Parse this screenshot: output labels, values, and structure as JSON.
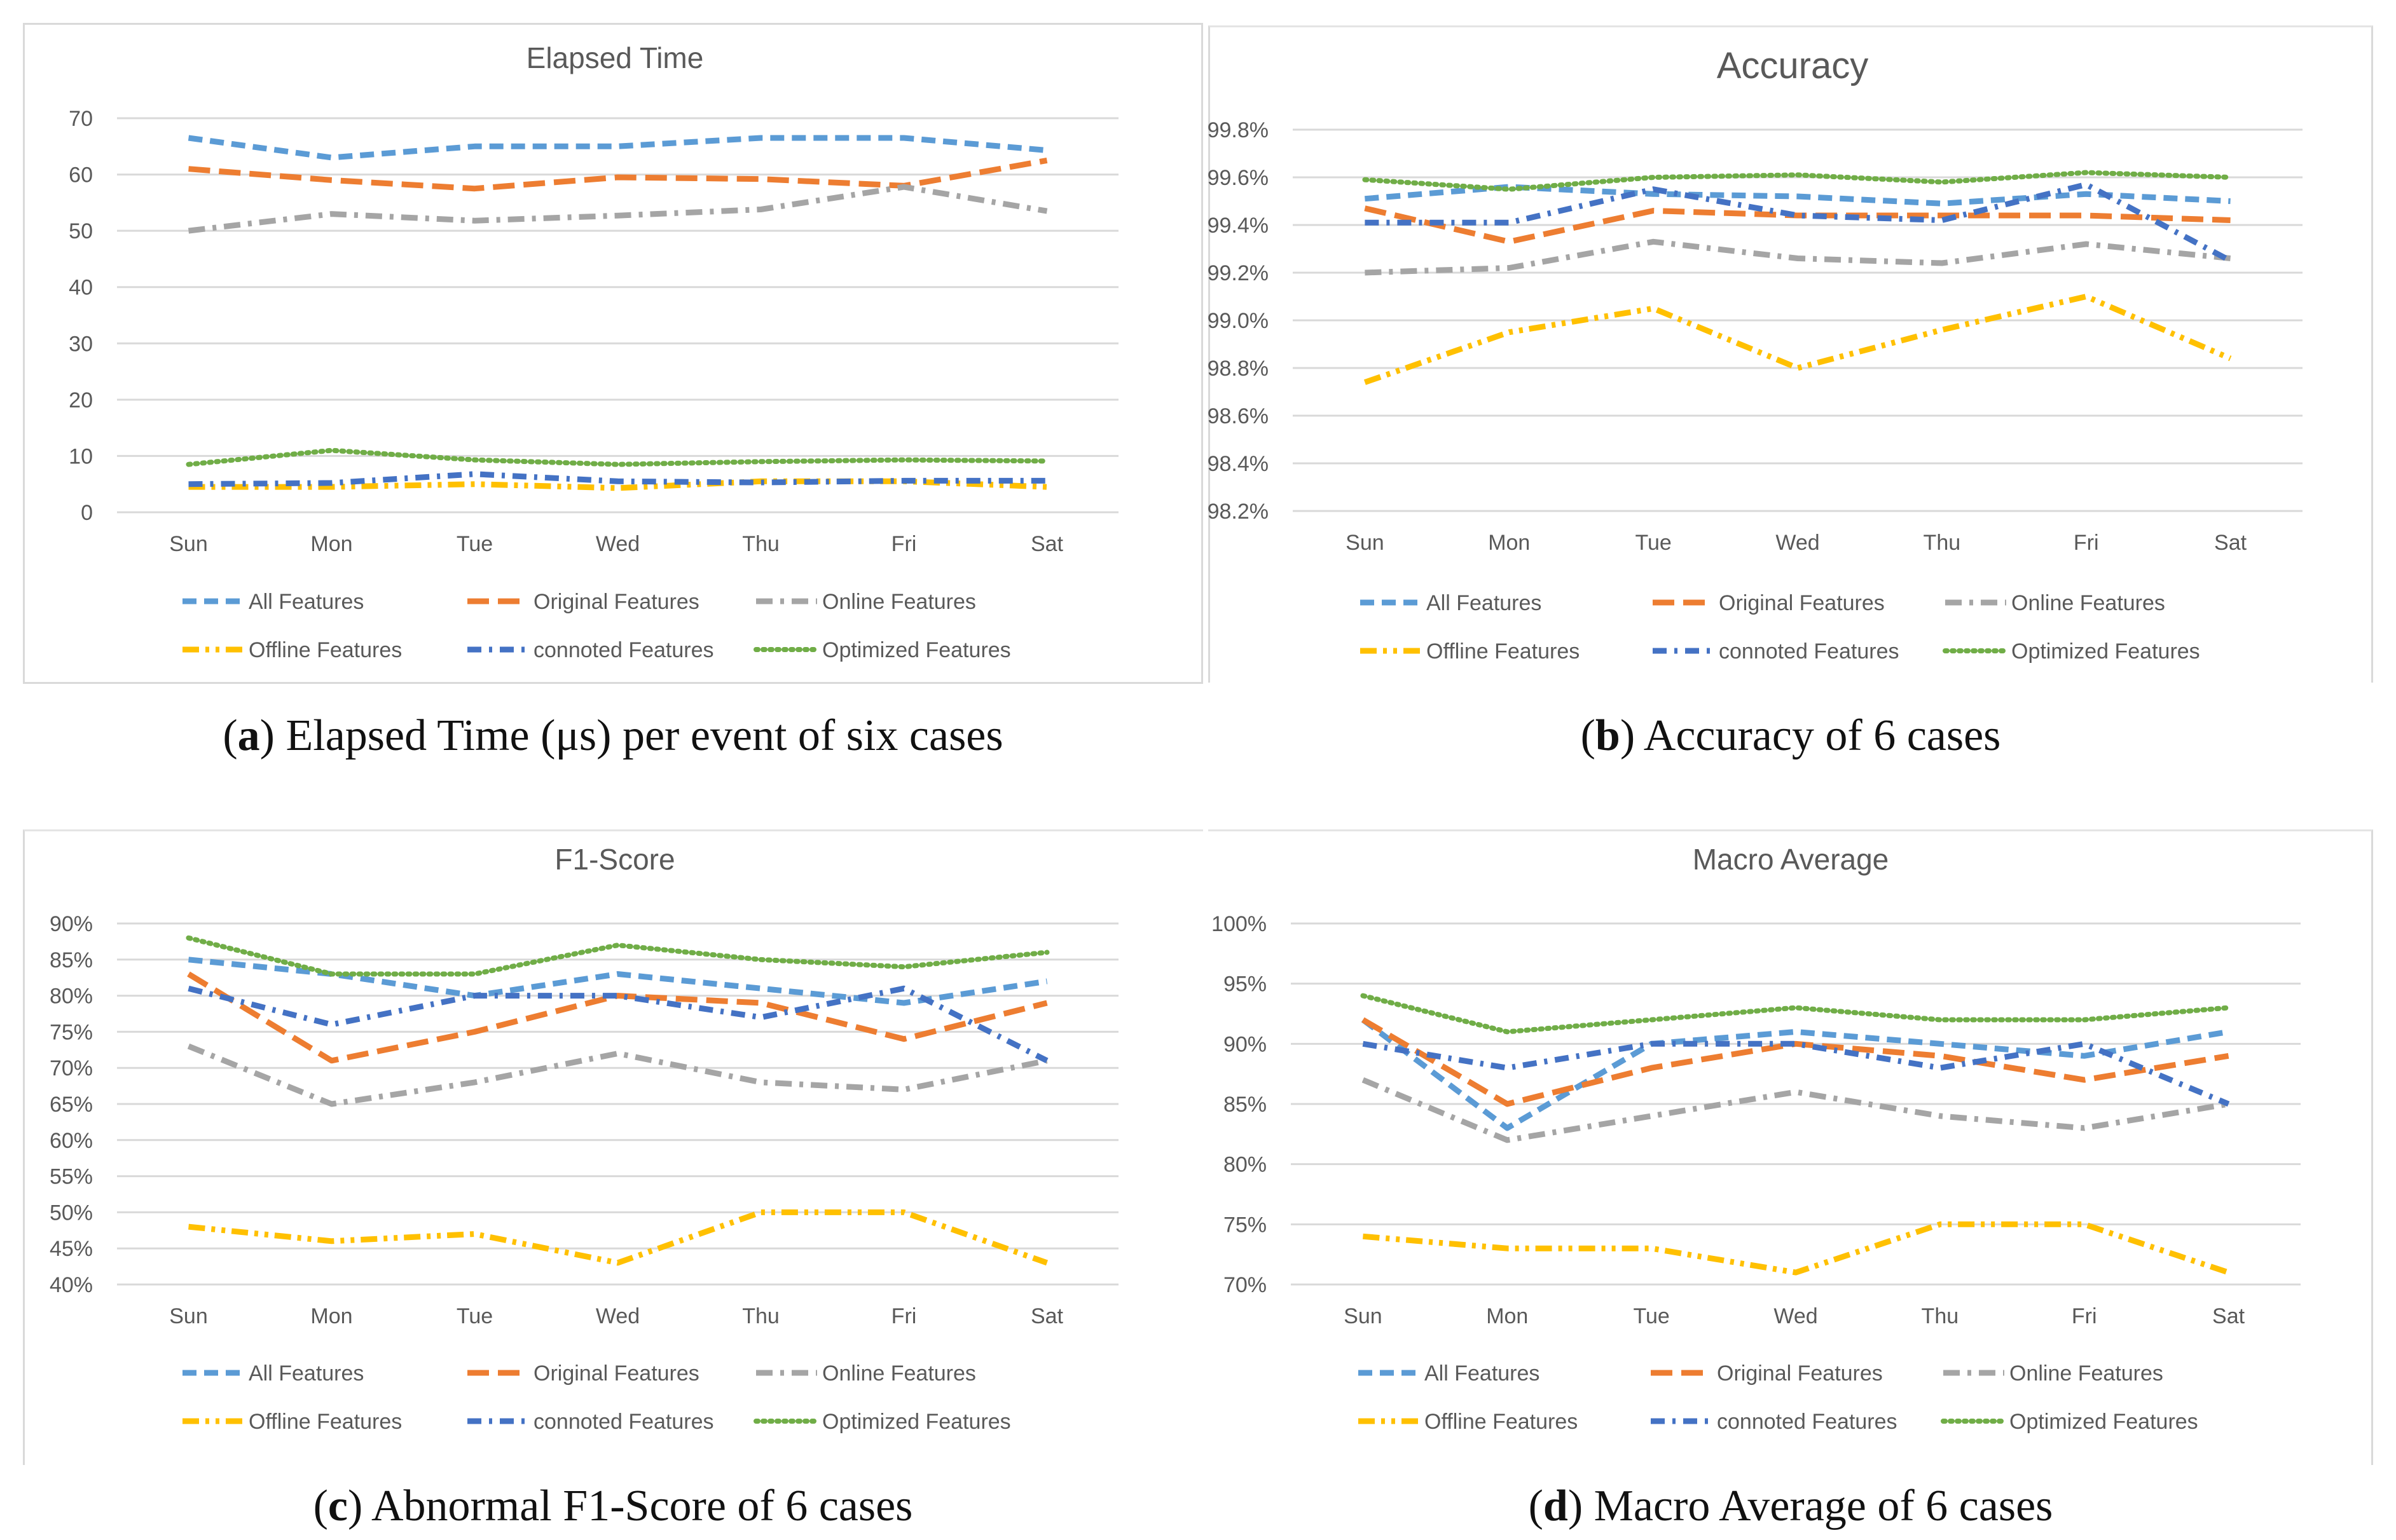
{
  "captions": {
    "a": {
      "letter": "a",
      "text": "Elapsed Time (μs) per event of six cases"
    },
    "b": {
      "letter": "b",
      "text": "Accuracy of 6 cases"
    },
    "c": {
      "letter": "c",
      "text": "Abnormal F1-Score of 6 cases"
    },
    "d": {
      "letter": "d",
      "text": "Macro Average of 6 cases"
    }
  },
  "series_styles": [
    {
      "name": "All Features",
      "color": "#5b9bd5",
      "style": "dash"
    },
    {
      "name": "Original Features",
      "color": "#ed7d31",
      "style": "longdash"
    },
    {
      "name": "Online Features",
      "color": "#a5a5a5",
      "style": "dashdot"
    },
    {
      "name": "Offline Features",
      "color": "#ffc000",
      "style": "dashdotdot"
    },
    {
      "name": "connoted Features",
      "color": "#4472c4",
      "style": "dashdot2"
    },
    {
      "name": "Optimized Features",
      "color": "#70ad47",
      "style": "dot"
    }
  ],
  "chart_data": [
    {
      "id": "a",
      "type": "line",
      "title": "Elapsed Time",
      "categories": [
        "Sun",
        "Mon",
        "Tue",
        "Wed",
        "Thu",
        "Fri",
        "Sat"
      ],
      "ylim": [
        0,
        70
      ],
      "yticks": [
        0,
        10,
        20,
        30,
        40,
        50,
        60,
        70
      ],
      "ytick_labels": [
        "0",
        "10",
        "20",
        "30",
        "40",
        "50",
        "60",
        "70"
      ],
      "grid": true,
      "legend": "bottom",
      "series": [
        {
          "name": "All Features",
          "values": [
            66.5,
            63,
            65,
            65,
            66.5,
            66.5,
            64.3
          ]
        },
        {
          "name": "Original Features",
          "values": [
            61,
            59,
            57.5,
            59.5,
            59.2,
            58,
            62.5
          ]
        },
        {
          "name": "Online Features",
          "values": [
            50,
            53,
            51.8,
            52.7,
            53.8,
            57.8,
            53.5
          ]
        },
        {
          "name": "Offline Features",
          "values": [
            4.5,
            4.5,
            5,
            4.3,
            5.5,
            5.5,
            4.5
          ]
        },
        {
          "name": "connoted Features",
          "values": [
            5,
            5.2,
            6.8,
            5.5,
            5.3,
            5.6,
            5.6
          ]
        },
        {
          "name": "Optimized Features",
          "values": [
            8.5,
            11,
            9.3,
            8.5,
            9,
            9.3,
            9.1
          ]
        }
      ]
    },
    {
      "id": "b",
      "type": "line",
      "title": "Accuracy",
      "categories": [
        "Sun",
        "Mon",
        "Tue",
        "Wed",
        "Thu",
        "Fri",
        "Sat"
      ],
      "ylim": [
        98.2,
        99.8
      ],
      "yticks": [
        98.2,
        98.4,
        98.6,
        98.8,
        99.0,
        99.2,
        99.4,
        99.6,
        99.8
      ],
      "ytick_labels": [
        "98.2%",
        "98.4%",
        "98.6%",
        "98.8%",
        "99.0%",
        "99.2%",
        "99.4%",
        "99.6%",
        "99.8%"
      ],
      "grid": true,
      "legend": "bottom",
      "series": [
        {
          "name": "All Features",
          "values": [
            99.51,
            99.56,
            99.53,
            99.52,
            99.49,
            99.53,
            99.5
          ]
        },
        {
          "name": "Original Features",
          "values": [
            99.47,
            99.33,
            99.46,
            99.44,
            99.44,
            99.44,
            99.42
          ]
        },
        {
          "name": "Online Features",
          "values": [
            99.2,
            99.22,
            99.33,
            99.26,
            99.24,
            99.32,
            99.26
          ]
        },
        {
          "name": "Offline Features",
          "values": [
            98.74,
            98.95,
            99.05,
            98.8,
            98.96,
            99.1,
            98.84
          ]
        },
        {
          "name": "connoted Features",
          "values": [
            99.41,
            99.41,
            99.55,
            99.44,
            99.42,
            99.57,
            99.25
          ]
        },
        {
          "name": "Optimized Features",
          "values": [
            99.59,
            99.55,
            99.6,
            99.61,
            99.58,
            99.62,
            99.6
          ]
        }
      ]
    },
    {
      "id": "c",
      "type": "line",
      "title": "F1-Score",
      "categories": [
        "Sun",
        "Mon",
        "Tue",
        "Wed",
        "Thu",
        "Fri",
        "Sat"
      ],
      "ylim": [
        40,
        90
      ],
      "yticks": [
        40,
        45,
        50,
        55,
        60,
        65,
        70,
        75,
        80,
        85,
        90
      ],
      "ytick_labels": [
        "40%",
        "45%",
        "50%",
        "55%",
        "60%",
        "65%",
        "70%",
        "75%",
        "80%",
        "85%",
        "90%"
      ],
      "grid": true,
      "legend": "bottom",
      "series": [
        {
          "name": "All Features",
          "values": [
            85,
            83,
            80,
            83,
            81,
            79,
            82
          ]
        },
        {
          "name": "Original Features",
          "values": [
            83,
            71,
            75,
            80,
            79,
            74,
            79
          ]
        },
        {
          "name": "Online Features",
          "values": [
            73,
            65,
            68,
            72,
            68,
            67,
            71
          ]
        },
        {
          "name": "Offline Features",
          "values": [
            48,
            46,
            47,
            43,
            50,
            50,
            43
          ]
        },
        {
          "name": "connoted Features",
          "values": [
            81,
            76,
            80,
            80,
            77,
            81,
            71
          ]
        },
        {
          "name": "Optimized Features",
          "values": [
            88,
            83,
            83,
            87,
            85,
            84,
            86
          ]
        }
      ]
    },
    {
      "id": "d",
      "type": "line",
      "title": "Macro Average",
      "categories": [
        "Sun",
        "Mon",
        "Tue",
        "Wed",
        "Thu",
        "Fri",
        "Sat"
      ],
      "ylim": [
        70,
        100
      ],
      "yticks": [
        70,
        75,
        80,
        85,
        90,
        95,
        100
      ],
      "ytick_labels": [
        "70%",
        "75%",
        "80%",
        "85%",
        "90%",
        "95%",
        "100%"
      ],
      "grid": true,
      "legend": "bottom",
      "series": [
        {
          "name": "All Features",
          "values": [
            92,
            83,
            90,
            91,
            90,
            89,
            91
          ]
        },
        {
          "name": "Original Features",
          "values": [
            92,
            85,
            88,
            90,
            89,
            87,
            89
          ]
        },
        {
          "name": "Online Features",
          "values": [
            87,
            82,
            84,
            86,
            84,
            83,
            85
          ]
        },
        {
          "name": "Offline Features",
          "values": [
            74,
            73,
            73,
            71,
            75,
            75,
            71
          ]
        },
        {
          "name": "connoted Features",
          "values": [
            90,
            88,
            90,
            90,
            88,
            90,
            85
          ]
        },
        {
          "name": "Optimized Features",
          "values": [
            94,
            91,
            92,
            93,
            92,
            92,
            93
          ]
        }
      ]
    }
  ]
}
